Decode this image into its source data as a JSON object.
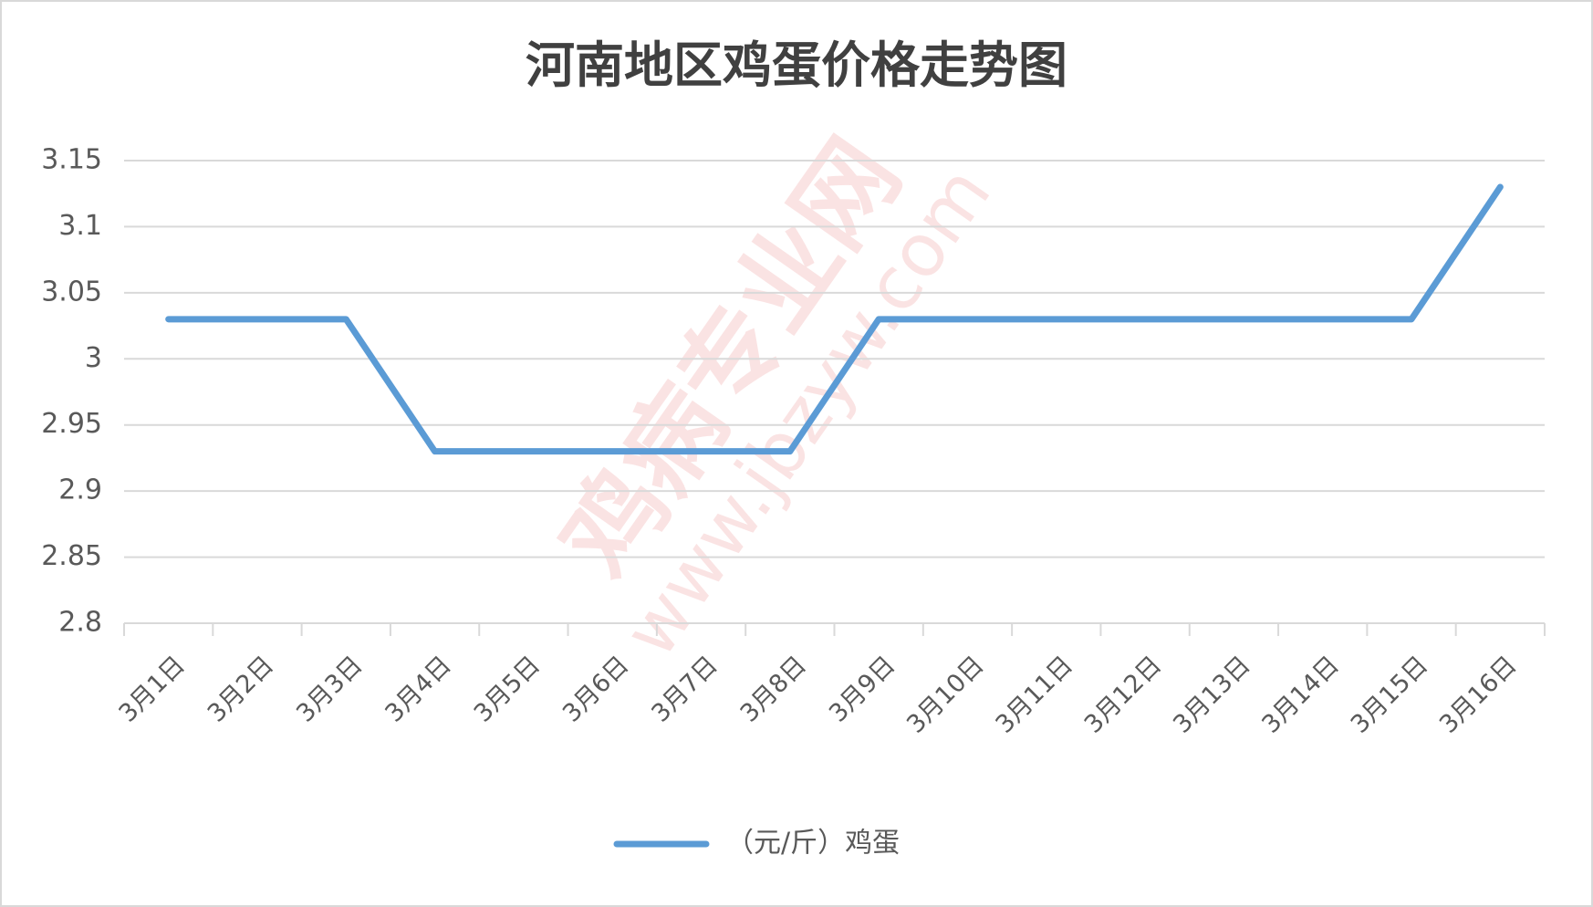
{
  "chart_data": {
    "type": "line",
    "title": "河南地区鸡蛋价格走势图",
    "categories": [
      "3月1日",
      "3月2日",
      "3月3日",
      "3月4日",
      "3月5日",
      "3月6日",
      "3月7日",
      "3月8日",
      "3月9日",
      "3月10日",
      "3月11日",
      "3月12日",
      "3月13日",
      "3月14日",
      "3月15日",
      "3月16日"
    ],
    "series": [
      {
        "name": "（元/斤）鸡蛋",
        "color": "#5b9bd5",
        "values": [
          3.03,
          3.03,
          3.03,
          2.93,
          2.93,
          2.93,
          2.93,
          2.93,
          3.03,
          3.03,
          3.03,
          3.03,
          3.03,
          3.03,
          3.03,
          3.13
        ]
      }
    ],
    "ylim": [
      2.8,
      3.15
    ],
    "yticks": [
      2.8,
      2.85,
      2.9,
      2.95,
      3,
      3.05,
      3.1,
      3.15
    ],
    "grid": true,
    "legend": "bottom",
    "watermark": [
      "鸡病专业网",
      "www.jbzyw.com"
    ]
  }
}
